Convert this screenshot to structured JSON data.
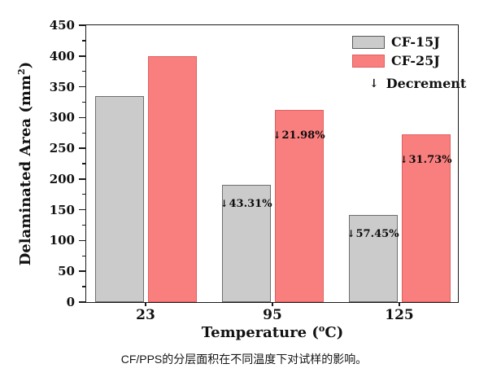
{
  "figure": {
    "caption": "CF/PPS的分层面积在不同温度下对试样的影响。"
  },
  "chart_data": {
    "type": "bar",
    "title": "",
    "xlabel": "Temperature (°C)",
    "xlabel_parts": {
      "pre": "Temperature (",
      "sup": "o",
      "post": "C)"
    },
    "ylabel": "Delaminated Area (mm²)",
    "ylabel_parts": {
      "pre": "Delaminated Area (mm",
      "sup": "2",
      "post": ")"
    },
    "categories": [
      "23",
      "95",
      "125"
    ],
    "series": [
      {
        "name": "CF-15J",
        "color": "#cbcbcb",
        "edge_color": "#6e6e6e",
        "values": [
          335,
          190,
          142
        ]
      },
      {
        "name": "CF-25J",
        "color": "#f97e7e",
        "edge_color": "#e06060",
        "values": [
          400,
          312,
          273
        ]
      }
    ],
    "ylim": [
      0,
      450
    ],
    "yticks": [
      0,
      50,
      100,
      150,
      200,
      250,
      300,
      350,
      400,
      450
    ],
    "minor_ytick_step": 25,
    "grid": false,
    "legend": {
      "position": "top-right",
      "arrow_icon": "↓",
      "decrement_label": "Decrement"
    },
    "annotations": [
      {
        "series_index": 0,
        "group_index": 1,
        "arrow": "↓",
        "text": "43.31%"
      },
      {
        "series_index": 1,
        "group_index": 1,
        "arrow": "↓",
        "text": "21.98%"
      },
      {
        "series_index": 0,
        "group_index": 2,
        "arrow": "↓",
        "text": "57.45%"
      },
      {
        "series_index": 1,
        "group_index": 2,
        "arrow": "↓",
        "text": "31.73%"
      }
    ]
  }
}
